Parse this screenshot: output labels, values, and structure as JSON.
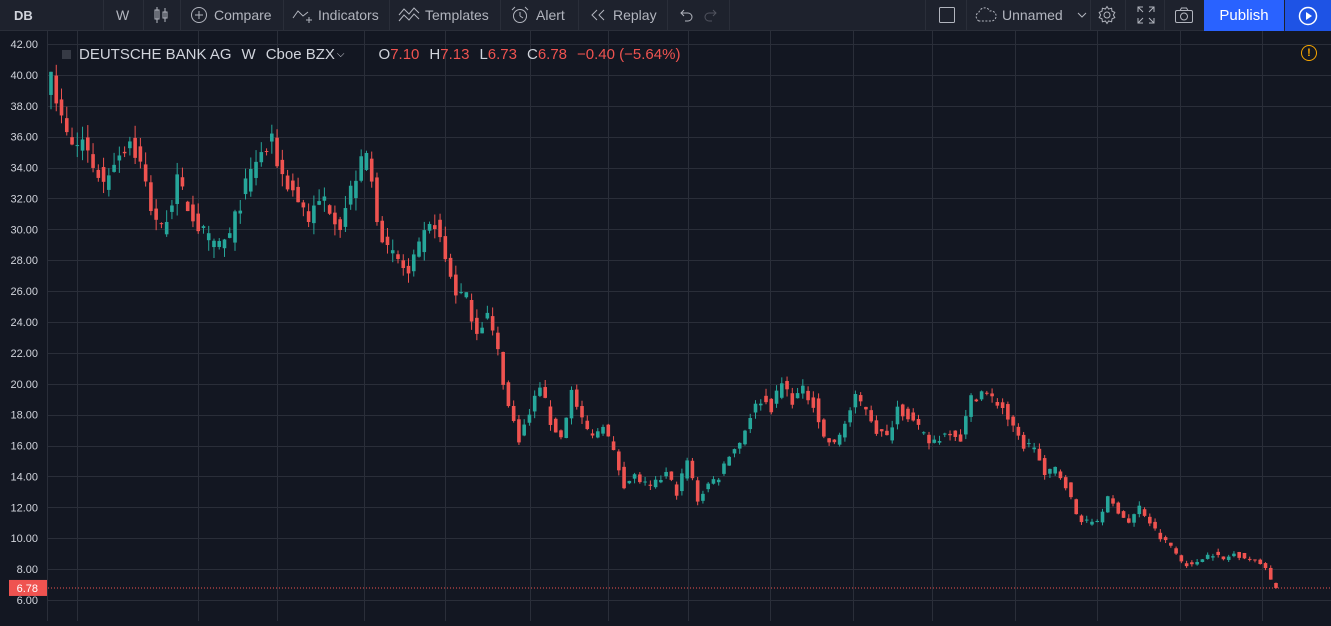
{
  "toolbar": {
    "symbol": "DB",
    "interval": "W",
    "compare": "Compare",
    "indicators": "Indicators",
    "templates": "Templates",
    "alert": "Alert",
    "replay": "Replay",
    "layout_name": "Unnamed",
    "publish": "Publish"
  },
  "legend": {
    "name": "DEUTSCHE BANK AG",
    "interval": "W",
    "exchange": "Cboe BZX",
    "o_label": "O",
    "o_value": "7.10",
    "h_label": "H",
    "h_value": "7.13",
    "l_label": "L",
    "l_value": "6.73",
    "c_label": "C",
    "c_value": "6.78",
    "change": "−0.40 (−5.64%)"
  },
  "colors": {
    "up": "#26a69a",
    "down": "#ef5350",
    "background": "#131722",
    "grid": "#2a2e39",
    "accent": "#2962ff"
  },
  "chart_data": {
    "type": "candlestick",
    "symbol": "DB",
    "interval": "W",
    "ylim": [
      5.0,
      42.7
    ],
    "y_ticks": [
      "42.00",
      "40.00",
      "38.00",
      "36.00",
      "34.00",
      "32.00",
      "30.00",
      "28.00",
      "26.00",
      "24.00",
      "22.00",
      "20.00",
      "18.00",
      "16.00",
      "14.00",
      "12.00",
      "10.00",
      "8.00",
      "6.00"
    ],
    "last_price": 6.78,
    "last_price_label": "6.78",
    "anchors": [
      [
        0,
        40.2
      ],
      [
        2,
        37.0
      ],
      [
        4,
        35.2
      ],
      [
        6,
        35.8
      ],
      [
        8,
        34.2
      ],
      [
        10,
        33.0
      ],
      [
        12,
        34.6
      ],
      [
        15,
        35.8
      ],
      [
        17,
        34.2
      ],
      [
        19,
        31.5
      ],
      [
        21,
        30.0
      ],
      [
        24,
        33.0
      ],
      [
        26,
        31.5
      ],
      [
        28,
        30.2
      ],
      [
        31,
        28.8
      ],
      [
        34,
        29.5
      ],
      [
        36,
        31.8
      ],
      [
        39,
        34.5
      ],
      [
        42,
        35.5
      ],
      [
        44,
        33.5
      ],
      [
        46,
        32.5
      ],
      [
        49,
        30.8
      ],
      [
        52,
        32.0
      ],
      [
        55,
        30.4
      ],
      [
        58,
        33.5
      ],
      [
        60,
        34.8
      ],
      [
        62,
        31.0
      ],
      [
        64,
        28.5
      ],
      [
        66,
        28.0
      ],
      [
        68,
        27.0
      ],
      [
        71,
        29.5
      ],
      [
        73,
        30.5
      ],
      [
        75,
        28.0
      ],
      [
        77,
        26.0
      ],
      [
        79,
        25.5
      ],
      [
        81,
        23.5
      ],
      [
        83,
        24.5
      ],
      [
        85,
        22.0
      ],
      [
        87,
        18.5
      ],
      [
        89,
        16.5
      ],
      [
        91,
        18.0
      ],
      [
        93,
        20.0
      ],
      [
        95,
        17.5
      ],
      [
        97,
        16.5
      ],
      [
        99,
        19.5
      ],
      [
        101,
        17.5
      ],
      [
        103,
        16.5
      ],
      [
        105,
        17.5
      ],
      [
        107,
        15.5
      ],
      [
        109,
        13.5
      ],
      [
        111,
        14.0
      ],
      [
        114,
        13.2
      ],
      [
        117,
        14.2
      ],
      [
        119,
        13.0
      ],
      [
        121,
        15.0
      ],
      [
        123,
        12.5
      ],
      [
        125,
        13.5
      ],
      [
        127,
        14.0
      ],
      [
        129,
        15.5
      ],
      [
        131,
        16.2
      ],
      [
        133,
        18.0
      ],
      [
        135,
        19.0
      ],
      [
        137,
        18.5
      ],
      [
        139,
        20.0
      ],
      [
        141,
        19.0
      ],
      [
        143,
        19.5
      ],
      [
        145,
        18.8
      ],
      [
        147,
        16.5
      ],
      [
        149,
        16.0
      ],
      [
        151,
        17.5
      ],
      [
        153,
        19.0
      ],
      [
        155,
        18.5
      ],
      [
        157,
        17.0
      ],
      [
        159,
        16.5
      ],
      [
        161,
        18.5
      ],
      [
        163,
        18.0
      ],
      [
        165,
        17.0
      ],
      [
        167,
        16.2
      ],
      [
        169,
        16.5
      ],
      [
        171,
        17.0
      ],
      [
        173,
        16.5
      ],
      [
        175,
        19.0
      ],
      [
        177,
        19.5
      ],
      [
        179,
        19.0
      ],
      [
        181,
        18.5
      ],
      [
        183,
        17.0
      ],
      [
        185,
        16.0
      ],
      [
        187,
        16.0
      ],
      [
        189,
        14.0
      ],
      [
        191,
        14.5
      ],
      [
        193,
        13.5
      ],
      [
        195,
        11.5
      ],
      [
        197,
        11.0
      ],
      [
        199,
        11.2
      ],
      [
        201,
        12.5
      ],
      [
        203,
        11.8
      ],
      [
        205,
        11.0
      ],
      [
        207,
        12.0
      ],
      [
        209,
        11.0
      ],
      [
        211,
        10.0
      ],
      [
        213,
        9.5
      ],
      [
        215,
        8.5
      ],
      [
        217,
        8.2
      ],
      [
        219,
        8.8
      ],
      [
        221,
        9.0
      ],
      [
        223,
        8.6
      ],
      [
        225,
        9.0
      ],
      [
        227,
        8.8
      ],
      [
        229,
        8.5
      ],
      [
        231,
        8.2
      ],
      [
        232,
        7.3
      ],
      [
        233,
        6.78
      ]
    ]
  }
}
